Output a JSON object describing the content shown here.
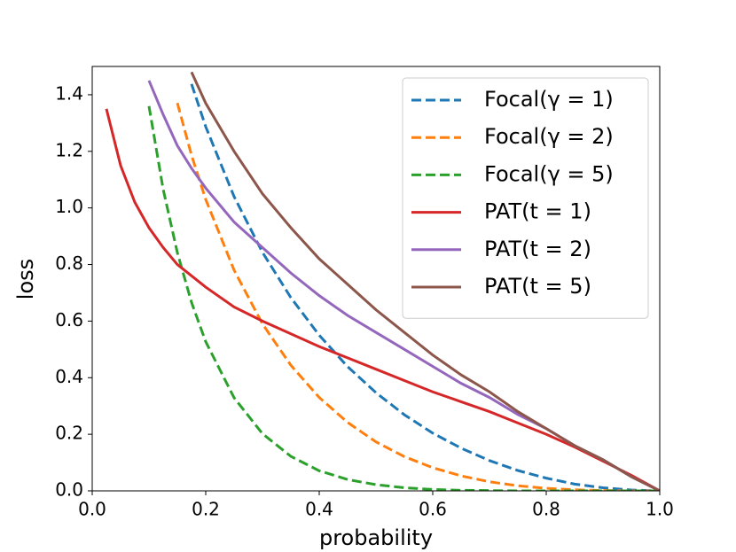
{
  "chart_data": {
    "type": "line",
    "xlabel": "probability",
    "ylabel": "loss",
    "x": [
      0.01,
      0.025,
      0.05,
      0.075,
      0.1,
      0.125,
      0.15,
      0.175,
      0.2,
      0.25,
      0.3,
      0.35,
      0.4,
      0.45,
      0.5,
      0.55,
      0.6,
      0.65,
      0.7,
      0.75,
      0.8,
      0.85,
      0.9,
      0.95,
      1.0
    ],
    "xlim": [
      0,
      1
    ],
    "ylim": [
      0,
      1.5
    ],
    "xticks": [
      {
        "value": 0,
        "label": "0.0"
      },
      {
        "value": 0.2,
        "label": "0.2"
      },
      {
        "value": 0.4,
        "label": "0.4"
      },
      {
        "value": 0.6,
        "label": "0.6"
      },
      {
        "value": 0.8,
        "label": "0.8"
      },
      {
        "value": 1,
        "label": "1.0"
      }
    ],
    "yticks": [
      {
        "value": 0,
        "label": "0.0"
      },
      {
        "value": 0.2,
        "label": "0.2"
      },
      {
        "value": 0.4,
        "label": "0.4"
      },
      {
        "value": 0.6,
        "label": "0.6"
      },
      {
        "value": 0.8,
        "label": "0.8"
      },
      {
        "value": 1,
        "label": "1.0"
      },
      {
        "value": 1.2,
        "label": "1.2"
      },
      {
        "value": 1.4,
        "label": "1.4"
      }
    ],
    "legend": "upper right",
    "grid": false,
    "series": [
      {
        "name": "Focal(γ = 1)",
        "color": "#1f77b4",
        "linestyle": "dashed",
        "values": [
          null,
          null,
          null,
          null,
          null,
          null,
          null,
          1.438,
          1.287,
          1.04,
          0.843,
          0.683,
          0.55,
          0.439,
          0.347,
          0.269,
          0.204,
          0.151,
          0.107,
          0.072,
          0.045,
          0.024,
          0.011,
          0.003,
          0
        ]
      },
      {
        "name": "Focal(γ = 2)",
        "color": "#ff7f0e",
        "linestyle": "dashed",
        "values": [
          null,
          null,
          null,
          null,
          null,
          null,
          1.371,
          1.186,
          1.03,
          0.78,
          0.59,
          0.444,
          0.33,
          0.242,
          0.173,
          0.121,
          0.082,
          0.053,
          0.032,
          0.018,
          0.009,
          0.004,
          0.001,
          0,
          0
        ]
      },
      {
        "name": "Focal(γ = 5)",
        "color": "#2ca02c",
        "linestyle": "dashed",
        "values": [
          null,
          null,
          null,
          null,
          1.36,
          1.066,
          0.842,
          0.666,
          0.527,
          0.329,
          0.202,
          0.122,
          0.071,
          0.04,
          0.022,
          0.011,
          0.005,
          0.002,
          0.001,
          0,
          0,
          0,
          0,
          0,
          0
        ]
      },
      {
        "name": "PAT(t = 1)",
        "color": "#d62728",
        "linestyle": "solid",
        "values": [
          null,
          1.35,
          1.15,
          1.02,
          0.93,
          0.86,
          0.8,
          0.76,
          0.72,
          0.65,
          0.6,
          0.555,
          0.51,
          0.47,
          0.43,
          0.39,
          0.35,
          0.315,
          0.28,
          0.24,
          0.2,
          0.155,
          0.105,
          0.055,
          0
        ]
      },
      {
        "name": "PAT(t = 2)",
        "color": "#9467bd",
        "linestyle": "solid",
        "values": [
          null,
          null,
          null,
          null,
          1.45,
          1.33,
          1.22,
          1.14,
          1.07,
          0.95,
          0.86,
          0.77,
          0.69,
          0.62,
          0.56,
          0.5,
          0.44,
          0.38,
          0.33,
          0.27,
          0.22,
          0.16,
          0.11,
          0.05,
          0
        ]
      },
      {
        "name": "PAT(t = 5)",
        "color": "#8c564b",
        "linestyle": "solid",
        "values": [
          null,
          null,
          null,
          null,
          null,
          null,
          null,
          1.48,
          1.37,
          1.2,
          1.05,
          0.93,
          0.82,
          0.73,
          0.64,
          0.56,
          0.48,
          0.41,
          0.35,
          0.28,
          0.22,
          0.16,
          0.11,
          0.05,
          0
        ]
      }
    ]
  }
}
